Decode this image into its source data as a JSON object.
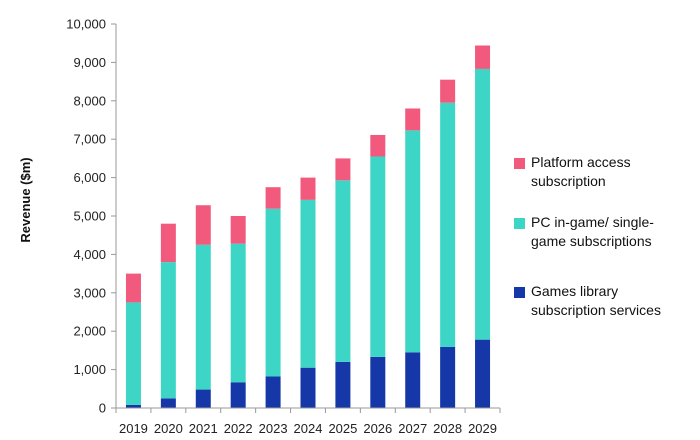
{
  "chart_data": {
    "type": "bar",
    "stacked": true,
    "title": "",
    "xlabel": "",
    "ylabel": "Revenue ($m)",
    "ylim": [
      0,
      10000
    ],
    "yticks": [
      "0",
      "1,000",
      "2,000",
      "3,000",
      "4,000",
      "5,000",
      "6,000",
      "7,000",
      "8,000",
      "9,000",
      "10,000"
    ],
    "ytick_values": [
      0,
      1000,
      2000,
      3000,
      4000,
      5000,
      6000,
      7000,
      8000,
      9000,
      10000
    ],
    "grid": false,
    "legend_position": "right",
    "categories": [
      "2019",
      "2020",
      "2021",
      "2022",
      "2023",
      "2024",
      "2025",
      "2026",
      "2027",
      "2028",
      "2029"
    ],
    "series": [
      {
        "name": "Games library subscription services",
        "color": "#1537a8",
        "values": [
          80,
          250,
          480,
          670,
          820,
          1050,
          1200,
          1330,
          1450,
          1590,
          1780
        ]
      },
      {
        "name": "PC in-game/ single-game subscriptions",
        "color": "#3dd6c6",
        "values": [
          2670,
          3550,
          3770,
          3610,
          4370,
          4370,
          4730,
          5220,
          5780,
          6360,
          7050
        ]
      },
      {
        "name": "Platform access subscription",
        "color": "#f25a7d",
        "values": [
          750,
          1000,
          1030,
          720,
          560,
          580,
          570,
          560,
          570,
          600,
          610
        ]
      }
    ],
    "legend": [
      {
        "lines": [
          "Platform access",
          "subscription"
        ],
        "color": "#f25a7d"
      },
      {
        "lines": [
          "PC in-game/ single-",
          "game subscriptions"
        ],
        "color": "#3dd6c6"
      },
      {
        "lines": [
          "Games library",
          "subscription services"
        ],
        "color": "#1537a8"
      }
    ]
  }
}
